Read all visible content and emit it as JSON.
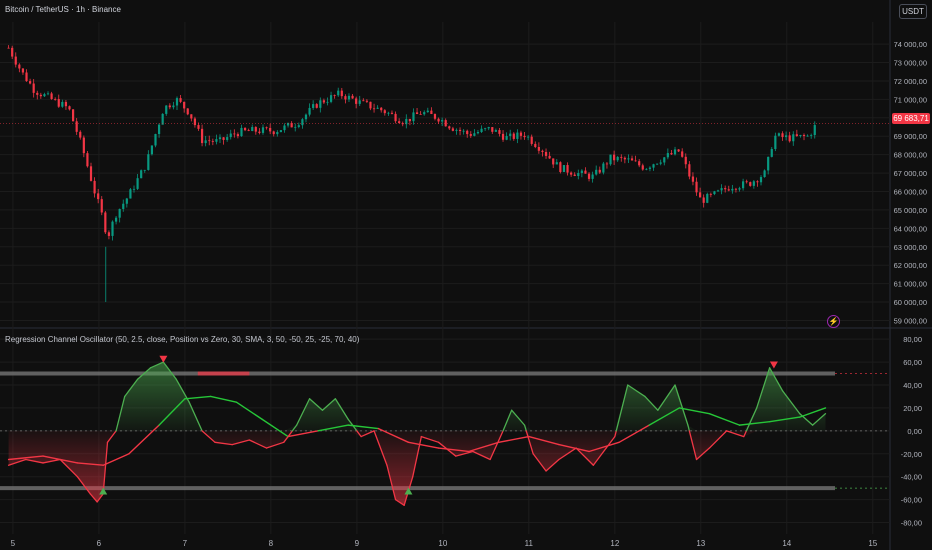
{
  "header": {
    "symbol_title": "Bitcoin / TetherUS · 1h · Binance",
    "currency_button": "USDT",
    "last_price": "69 683,71",
    "indicator_title": "Regression Channel Oscillator (50, 2.5, close, Position vs Zero, 30, SMA, 3, 50, -50, 25, -25, 70, 40)",
    "alert_icon": "lightning-icon"
  },
  "colors": {
    "background": "#0f0f0f",
    "grid": "#1c1c1c",
    "up": "#089981",
    "down": "#f23645",
    "osc_up": "#4caf50",
    "osc_down": "#f23645",
    "signal": "#26c638",
    "band": "#6f6f6f",
    "text": "#b2b5be"
  },
  "chart_data": [
    {
      "type": "candlestick",
      "title": "Bitcoin / TetherUS · 1h · Binance",
      "x_tick_labels": [
        "5",
        "6",
        "7",
        "8",
        "9",
        "10",
        "11",
        "12",
        "13",
        "14",
        "15"
      ],
      "y_tick_labels": [
        "74 000,00",
        "73 000,00",
        "72 000,00",
        "71 000,00",
        "70 000,00",
        "69 000,00",
        "68 000,00",
        "67 000,00",
        "66 000,00",
        "65 000,00",
        "64 000,00",
        "63 000,00",
        "62 000,00",
        "61 000,00",
        "60 000,00",
        "59 000,00"
      ],
      "ylim": [
        58700,
        75200
      ],
      "last_price": 69683.71,
      "grid": true,
      "approx_close_path": [
        {
          "x": 4.95,
          "y": 73800
        },
        {
          "x": 5.1,
          "y": 72500
        },
        {
          "x": 5.25,
          "y": 71500
        },
        {
          "x": 5.45,
          "y": 71000
        },
        {
          "x": 5.65,
          "y": 70500
        },
        {
          "x": 5.8,
          "y": 68500
        },
        {
          "x": 5.95,
          "y": 66000
        },
        {
          "x": 6.05,
          "y": 64500
        },
        {
          "x": 6.1,
          "y": 63500
        },
        {
          "x": 6.2,
          "y": 64800
        },
        {
          "x": 6.35,
          "y": 65800
        },
        {
          "x": 6.55,
          "y": 67500
        },
        {
          "x": 6.75,
          "y": 70500
        },
        {
          "x": 6.9,
          "y": 71000
        },
        {
          "x": 7.05,
          "y": 70300
        },
        {
          "x": 7.2,
          "y": 68800
        },
        {
          "x": 7.4,
          "y": 68700
        },
        {
          "x": 7.6,
          "y": 69200
        },
        {
          "x": 7.8,
          "y": 69300
        },
        {
          "x": 8.05,
          "y": 69300
        },
        {
          "x": 8.3,
          "y": 69700
        },
        {
          "x": 8.55,
          "y": 70800
        },
        {
          "x": 8.8,
          "y": 71300
        },
        {
          "x": 9.05,
          "y": 70800
        },
        {
          "x": 9.3,
          "y": 70400
        },
        {
          "x": 9.55,
          "y": 69800
        },
        {
          "x": 9.75,
          "y": 70300
        },
        {
          "x": 9.95,
          "y": 70000
        },
        {
          "x": 10.1,
          "y": 69500
        },
        {
          "x": 10.3,
          "y": 69100
        },
        {
          "x": 10.55,
          "y": 69400
        },
        {
          "x": 10.75,
          "y": 68900
        },
        {
          "x": 10.95,
          "y": 69100
        },
        {
          "x": 11.15,
          "y": 68300
        },
        {
          "x": 11.35,
          "y": 67300
        },
        {
          "x": 11.55,
          "y": 67000
        },
        {
          "x": 11.75,
          "y": 66800
        },
        {
          "x": 11.95,
          "y": 67800
        },
        {
          "x": 12.15,
          "y": 67700
        },
        {
          "x": 12.35,
          "y": 67300
        },
        {
          "x": 12.55,
          "y": 67800
        },
        {
          "x": 12.75,
          "y": 68200
        },
        {
          "x": 12.9,
          "y": 66500
        },
        {
          "x": 13.0,
          "y": 65500
        },
        {
          "x": 13.15,
          "y": 65800
        },
        {
          "x": 13.35,
          "y": 66300
        },
        {
          "x": 13.55,
          "y": 66400
        },
        {
          "x": 13.75,
          "y": 67000
        },
        {
          "x": 13.85,
          "y": 69000
        },
        {
          "x": 14.05,
          "y": 68900
        },
        {
          "x": 14.25,
          "y": 69000
        },
        {
          "x": 14.35,
          "y": 69683.71
        }
      ]
    },
    {
      "type": "line",
      "title": "Regression Channel Oscillator (50, 2.5, close, Position vs Zero, 30, SMA, 3, 50, -50, 25, -25, 70, 40)",
      "y_tick_labels": [
        "80,00",
        "60,00",
        "40,00",
        "20,00",
        "0,00",
        "-20,00",
        "-40,00",
        "-60,00",
        "-80,00"
      ],
      "ylim": [
        -90,
        88
      ],
      "levels": [
        50,
        0,
        -50
      ],
      "series": [
        {
          "values": [
            {
              "x": 4.95,
              "y": -30
            },
            {
              "x": 5.15,
              "y": -25
            },
            {
              "x": 5.35,
              "y": -28
            },
            {
              "x": 5.55,
              "y": -25
            },
            {
              "x": 5.75,
              "y": -40
            },
            {
              "x": 5.9,
              "y": -55
            },
            {
              "x": 5.98,
              "y": -62
            },
            {
              "x": 6.05,
              "y": -55
            },
            {
              "x": 6.1,
              "y": -10
            },
            {
              "x": 6.2,
              "y": 0
            },
            {
              "x": 6.3,
              "y": 30
            },
            {
              "x": 6.45,
              "y": 45
            },
            {
              "x": 6.6,
              "y": 55
            },
            {
              "x": 6.75,
              "y": 60
            },
            {
              "x": 6.9,
              "y": 45
            },
            {
              "x": 7.05,
              "y": 25
            },
            {
              "x": 7.2,
              "y": 0
            },
            {
              "x": 7.35,
              "y": -10
            },
            {
              "x": 7.55,
              "y": -12
            },
            {
              "x": 7.75,
              "y": -8
            },
            {
              "x": 7.95,
              "y": -15
            },
            {
              "x": 8.15,
              "y": -10
            },
            {
              "x": 8.3,
              "y": 5
            },
            {
              "x": 8.45,
              "y": 28
            },
            {
              "x": 8.6,
              "y": 18
            },
            {
              "x": 8.75,
              "y": 28
            },
            {
              "x": 8.9,
              "y": 10
            },
            {
              "x": 9.05,
              "y": -5
            },
            {
              "x": 9.2,
              "y": 0
            },
            {
              "x": 9.35,
              "y": -30
            },
            {
              "x": 9.45,
              "y": -60
            },
            {
              "x": 9.55,
              "y": -65
            },
            {
              "x": 9.65,
              "y": -40
            },
            {
              "x": 9.75,
              "y": -5
            },
            {
              "x": 9.95,
              "y": -10
            },
            {
              "x": 10.15,
              "y": -22
            },
            {
              "x": 10.35,
              "y": -18
            },
            {
              "x": 10.55,
              "y": -25
            },
            {
              "x": 10.7,
              "y": 0
            },
            {
              "x": 10.8,
              "y": 18
            },
            {
              "x": 10.95,
              "y": 5
            },
            {
              "x": 11.05,
              "y": -20
            },
            {
              "x": 11.2,
              "y": -35
            },
            {
              "x": 11.35,
              "y": -25
            },
            {
              "x": 11.55,
              "y": -15
            },
            {
              "x": 11.75,
              "y": -30
            },
            {
              "x": 11.9,
              "y": -15
            },
            {
              "x": 12.0,
              "y": -5
            },
            {
              "x": 12.15,
              "y": 40
            },
            {
              "x": 12.35,
              "y": 30
            },
            {
              "x": 12.5,
              "y": 18
            },
            {
              "x": 12.7,
              "y": 40
            },
            {
              "x": 12.85,
              "y": 5
            },
            {
              "x": 12.95,
              "y": -25
            },
            {
              "x": 13.1,
              "y": -15
            },
            {
              "x": 13.3,
              "y": 0
            },
            {
              "x": 13.5,
              "y": -5
            },
            {
              "x": 13.65,
              "y": 20
            },
            {
              "x": 13.8,
              "y": 55
            },
            {
              "x": 13.95,
              "y": 35
            },
            {
              "x": 14.15,
              "y": 15
            },
            {
              "x": 14.3,
              "y": 5
            },
            {
              "x": 14.45,
              "y": 15
            }
          ]
        },
        {
          "values": [
            {
              "x": 4.95,
              "y": -25
            },
            {
              "x": 5.35,
              "y": -22
            },
            {
              "x": 5.75,
              "y": -28
            },
            {
              "x": 6.05,
              "y": -30
            },
            {
              "x": 6.35,
              "y": -20
            },
            {
              "x": 6.7,
              "y": 5
            },
            {
              "x": 7.0,
              "y": 28
            },
            {
              "x": 7.3,
              "y": 30
            },
            {
              "x": 7.6,
              "y": 25
            },
            {
              "x": 7.9,
              "y": 10
            },
            {
              "x": 8.2,
              "y": -5
            },
            {
              "x": 8.55,
              "y": 0
            },
            {
              "x": 8.9,
              "y": 5
            },
            {
              "x": 9.25,
              "y": 2
            },
            {
              "x": 9.6,
              "y": -10
            },
            {
              "x": 9.95,
              "y": -15
            },
            {
              "x": 10.3,
              "y": -18
            },
            {
              "x": 10.65,
              "y": -10
            },
            {
              "x": 11.0,
              "y": -5
            },
            {
              "x": 11.35,
              "y": -12
            },
            {
              "x": 11.7,
              "y": -18
            },
            {
              "x": 12.05,
              "y": -10
            },
            {
              "x": 12.4,
              "y": 5
            },
            {
              "x": 12.75,
              "y": 20
            },
            {
              "x": 13.1,
              "y": 15
            },
            {
              "x": 13.45,
              "y": 5
            },
            {
              "x": 13.8,
              "y": 8
            },
            {
              "x": 14.15,
              "y": 12
            },
            {
              "x": 14.45,
              "y": 20
            }
          ]
        }
      ],
      "signal_markers": [
        {
          "x": 6.75,
          "y": 62,
          "direction": "down"
        },
        {
          "x": 13.85,
          "y": 57,
          "direction": "down"
        },
        {
          "x": 6.05,
          "y": -52,
          "direction": "up"
        },
        {
          "x": 9.6,
          "y": -52,
          "direction": "up"
        }
      ]
    }
  ]
}
